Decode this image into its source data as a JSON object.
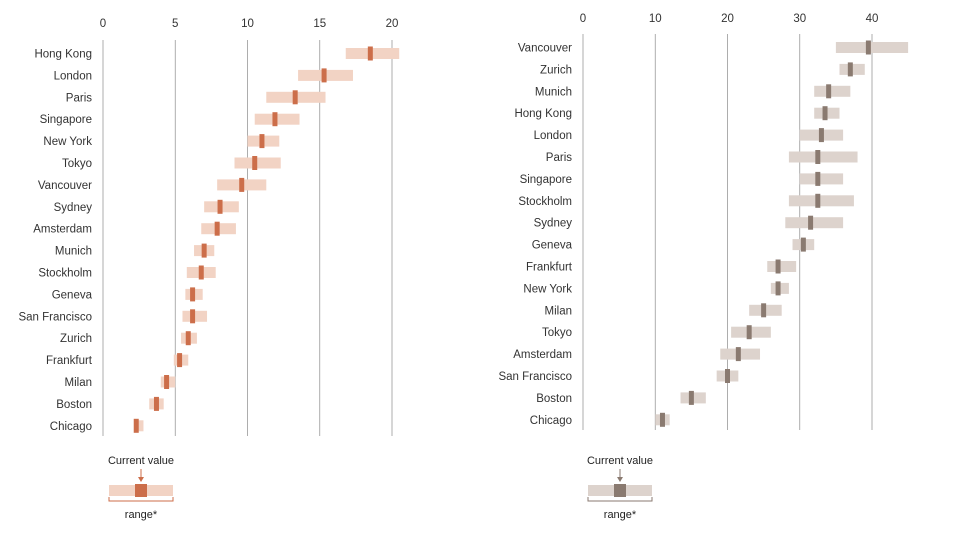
{
  "colors": {
    "left_range": "#f2d3c4",
    "left_current": "#cc6e4a",
    "right_range": "#ddd3cd",
    "right_current": "#8a7a70",
    "grid": "#999999",
    "text": "#333333"
  },
  "chart_data": [
    {
      "type": "range-dot",
      "title": "",
      "xlabel": "",
      "ylabel": "",
      "xlim": [
        0,
        20.5
      ],
      "xticks": [
        0,
        5,
        10,
        15,
        20
      ],
      "grid": "vertical",
      "categories": [
        "Hong Kong",
        "London",
        "Paris",
        "Singapore",
        "New York",
        "Tokyo",
        "Vancouver",
        "Sydney",
        "Amsterdam",
        "Munich",
        "Stockholm",
        "Geneva",
        "San Francisco",
        "Zurich",
        "Frankfurt",
        "Milan",
        "Boston",
        "Chicago"
      ],
      "series": [
        {
          "values": [
            18.5,
            15.3,
            13.3,
            11.9,
            11.0,
            10.5,
            9.6,
            8.1,
            7.9,
            7.0,
            6.8,
            6.2,
            6.2,
            5.9,
            5.3,
            4.4,
            3.7,
            2.3
          ]
        },
        {
          "values": [
            16.8,
            13.5,
            11.3,
            10.5,
            10.0,
            9.1,
            7.9,
            7.0,
            6.8,
            6.3,
            5.8,
            5.7,
            5.5,
            5.4,
            4.9,
            4.0,
            3.2,
            2.2
          ]
        },
        {
          "values": [
            20.5,
            17.3,
            15.4,
            13.6,
            12.2,
            12.3,
            11.3,
            9.4,
            9.2,
            7.7,
            7.8,
            6.9,
            7.2,
            6.5,
            5.9,
            5.0,
            4.2,
            2.8
          ]
        }
      ],
      "legend": {
        "current_label": "Current value",
        "range_label": "range*"
      }
    },
    {
      "type": "range-dot",
      "title": "",
      "xlabel": "",
      "ylabel": "",
      "xlim": [
        0,
        45
      ],
      "xticks": [
        0,
        10,
        20,
        30,
        40
      ],
      "grid": "vertical",
      "categories": [
        "Vancouver",
        "Zurich",
        "Munich",
        "Hong Kong",
        "London",
        "Paris",
        "Singapore",
        "Stockholm",
        "Sydney",
        "Geneva",
        "Frankfurt",
        "New York",
        "Milan",
        "Tokyo",
        "Amsterdam",
        "San Francisco",
        "Boston",
        "Chicago"
      ],
      "series": [
        {
          "values": [
            39.5,
            37.0,
            34.0,
            33.5,
            33.0,
            32.5,
            32.5,
            32.5,
            31.5,
            30.5,
            27.0,
            27.0,
            25.0,
            23.0,
            21.5,
            20.0,
            15.0,
            11.0
          ]
        },
        {
          "values": [
            35.0,
            35.5,
            32.0,
            32.0,
            30.0,
            28.5,
            30.0,
            28.5,
            28.0,
            29.0,
            25.5,
            26.0,
            23.0,
            20.5,
            19.0,
            18.5,
            13.5,
            10.0
          ]
        },
        {
          "values": [
            45.0,
            39.0,
            37.0,
            35.5,
            36.0,
            38.0,
            36.0,
            37.5,
            36.0,
            32.0,
            29.5,
            28.5,
            27.5,
            26.0,
            24.5,
            21.5,
            17.0,
            12.0
          ]
        }
      ],
      "legend": {
        "current_label": "Current value",
        "range_label": "range*"
      }
    }
  ]
}
